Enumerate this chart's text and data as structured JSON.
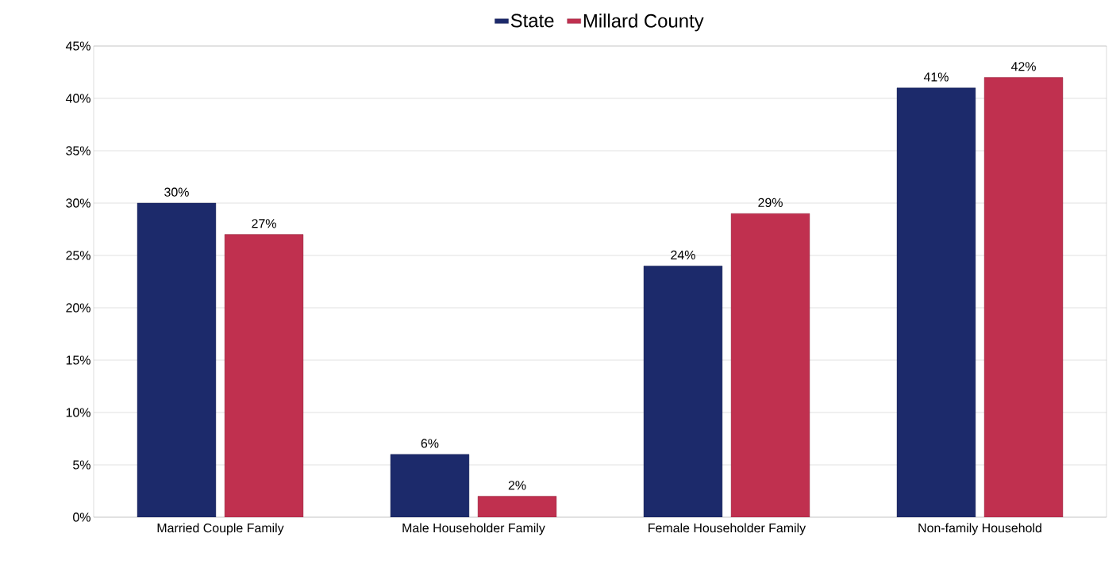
{
  "chart_data": {
    "type": "bar",
    "categories": [
      "Married Couple Family",
      "Male Householder Family",
      "Female Householder Family",
      "Non-family Household"
    ],
    "series": [
      {
        "name": "State",
        "color": "#1c2a6b",
        "values": [
          30,
          6,
          24,
          41
        ],
        "value_labels": [
          "30%",
          "6%",
          "24%",
          "41%"
        ]
      },
      {
        "name": "Millard County",
        "color": "#c0304f",
        "values": [
          27,
          2,
          29,
          42
        ],
        "value_labels": [
          "27%",
          "2%",
          "29%",
          "42%"
        ]
      }
    ],
    "ylim": [
      0,
      45
    ],
    "yticks": [
      {
        "value": 0,
        "label": "0%"
      },
      {
        "value": 5,
        "label": "5%"
      },
      {
        "value": 10,
        "label": "10%"
      },
      {
        "value": 15,
        "label": "15%"
      },
      {
        "value": 20,
        "label": "20%"
      },
      {
        "value": 25,
        "label": "25%"
      },
      {
        "value": 30,
        "label": "30%"
      },
      {
        "value": 35,
        "label": "35%"
      },
      {
        "value": 40,
        "label": "40%"
      },
      {
        "value": 45,
        "label": "45%"
      }
    ],
    "grid": "y",
    "legend": "top"
  }
}
